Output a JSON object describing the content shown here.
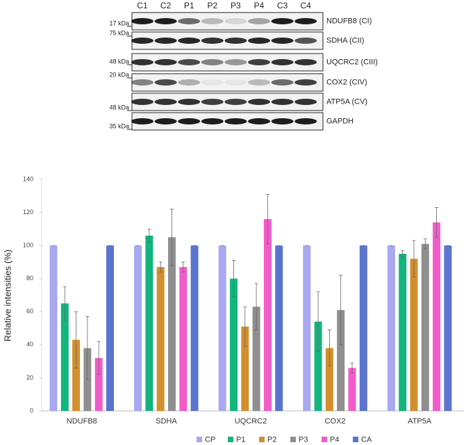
{
  "blot": {
    "lanes": [
      "C1",
      "C2",
      "P1",
      "P2",
      "P3",
      "P4",
      "C3",
      "C4"
    ],
    "rows": [
      {
        "marker": "17 kDa",
        "protein": "NDUFB8 (CI)"
      },
      {
        "marker": "75 kDa",
        "protein": "SDHA (CII)"
      },
      {
        "marker": "48 kDa",
        "protein": "UQCRC2 (CIII)"
      },
      {
        "marker": "20 kDa",
        "protein": "COX2 (CIV)"
      },
      {
        "marker": "48 kDa",
        "protein": "ATP5A (CV)"
      },
      {
        "marker": "35 kDa",
        "protein": "GAPDH"
      }
    ]
  },
  "chart_data": {
    "type": "bar",
    "y_label": "Relative intensities (%)",
    "categories": [
      "NDUFB8",
      "SDHA",
      "UQCRC2",
      "COX2",
      "ATP5A"
    ],
    "series": [
      {
        "name": "CP",
        "color": "#a8a8f0",
        "values": [
          100,
          100,
          100,
          100,
          100
        ],
        "errors": [
          0,
          0,
          0,
          0,
          0
        ]
      },
      {
        "name": "P1",
        "color": "#12b57e",
        "values": [
          65,
          106,
          80,
          54,
          95
        ],
        "errors": [
          10,
          4,
          11,
          18,
          2
        ]
      },
      {
        "name": "P2",
        "color": "#d18f2e",
        "values": [
          43,
          87,
          51,
          38,
          92
        ],
        "errors": [
          17,
          3,
          12,
          11,
          11
        ]
      },
      {
        "name": "P3",
        "color": "#8f8f8f",
        "values": [
          38,
          105,
          63,
          61,
          101
        ],
        "errors": [
          19,
          17,
          14,
          21,
          3
        ]
      },
      {
        "name": "P4",
        "color": "#f25cc9",
        "values": [
          32,
          87,
          116,
          26,
          114
        ],
        "errors": [
          10,
          3,
          15,
          3,
          9
        ]
      },
      {
        "name": "CA",
        "color": "#5a74cf",
        "values": [
          100,
          100,
          100,
          100,
          100
        ],
        "errors": [
          0,
          0,
          0,
          0,
          0
        ]
      }
    ],
    "ylim": [
      0,
      140
    ],
    "yticks": [
      0,
      20,
      40,
      60,
      80,
      100,
      120,
      140
    ],
    "legend": "bottom"
  }
}
